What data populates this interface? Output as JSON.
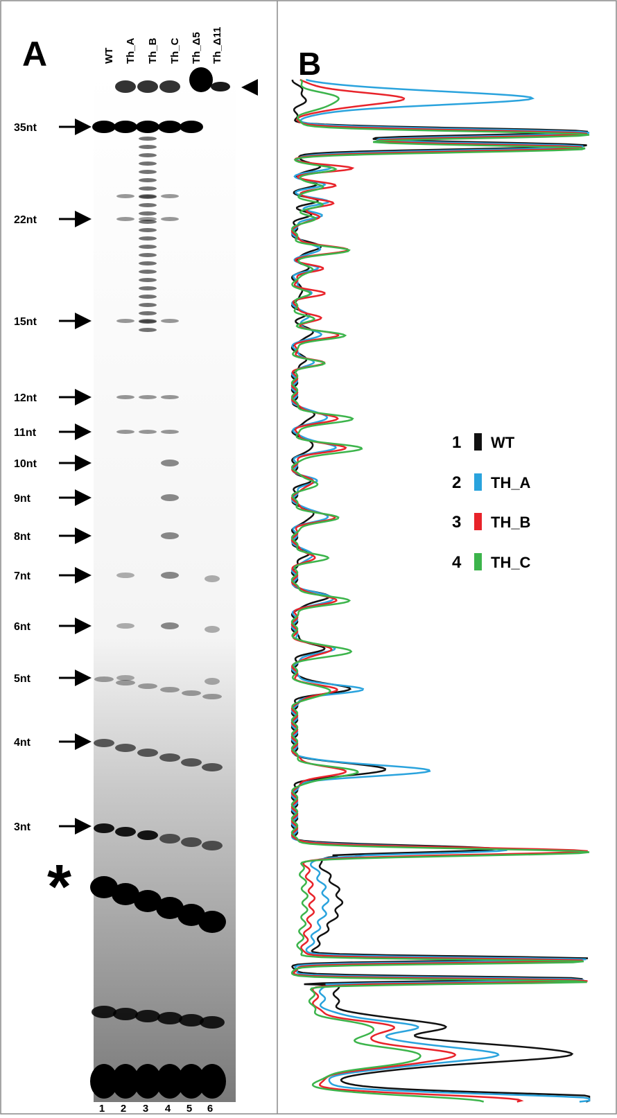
{
  "panel_a": {
    "label": "A",
    "lanes": [
      "WT",
      "Th_A",
      "Th_B",
      "Th_C",
      "Th_Δ5",
      "Th_Δ11"
    ],
    "markers": [
      "35nt",
      "22nt",
      "15nt",
      "12nt",
      "11nt",
      "10nt",
      "9nt",
      "8nt",
      "7nt",
      "6nt",
      "5nt",
      "4nt",
      "3nt"
    ],
    "asterisk": "*",
    "lane_numbers": [
      "1",
      "2",
      "3",
      "4",
      "5",
      "6"
    ]
  },
  "panel_b": {
    "label": "B",
    "legend": [
      {
        "number": "1",
        "label": "WT",
        "color": "#111111"
      },
      {
        "number": "2",
        "label": "TH_A",
        "color": "#2aa3dd"
      },
      {
        "number": "3",
        "label": "TH_B",
        "color": "#e8232a"
      },
      {
        "number": "4",
        "label": "TH_C",
        "color": "#3cb44b"
      }
    ]
  }
}
